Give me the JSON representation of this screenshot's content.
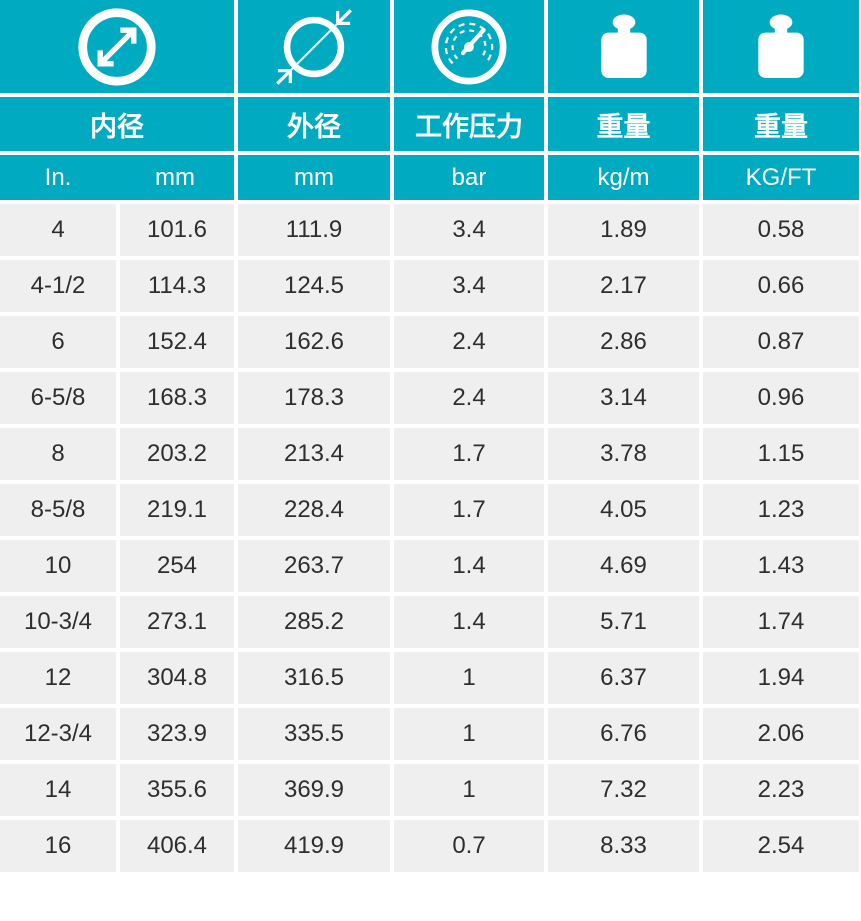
{
  "chart_data": {
    "type": "table",
    "column_groups": [
      {
        "label": "内径",
        "icon": "inner-diameter-icon",
        "units": [
          "In.",
          "mm"
        ]
      },
      {
        "label": "外径",
        "icon": "outer-diameter-icon",
        "units": [
          "mm"
        ]
      },
      {
        "label": "工作压力",
        "icon": "pressure-gauge-icon",
        "units": [
          "bar"
        ]
      },
      {
        "label": "重量",
        "icon": "weight-icon",
        "units": [
          "kg/m"
        ]
      },
      {
        "label": "重量",
        "icon": "weight-icon",
        "units": [
          "KG/FT"
        ]
      }
    ],
    "rows": [
      [
        "4",
        "101.6",
        "111.9",
        "3.4",
        "1.89",
        "0.58"
      ],
      [
        "4-1/2",
        "114.3",
        "124.5",
        "3.4",
        "2.17",
        "0.66"
      ],
      [
        "6",
        "152.4",
        "162.6",
        "2.4",
        "2.86",
        "0.87"
      ],
      [
        "6-5/8",
        "168.3",
        "178.3",
        "2.4",
        "3.14",
        "0.96"
      ],
      [
        "8",
        "203.2",
        "213.4",
        "1.7",
        "3.78",
        "1.15"
      ],
      [
        "8-5/8",
        "219.1",
        "228.4",
        "1.7",
        "4.05",
        "1.23"
      ],
      [
        "10",
        "254",
        "263.7",
        "1.4",
        "4.69",
        "1.43"
      ],
      [
        "10-3/4",
        "273.1",
        "285.2",
        "1.4",
        "5.71",
        "1.74"
      ],
      [
        "12",
        "304.8",
        "316.5",
        "1",
        "6.37",
        "1.94"
      ],
      [
        "12-3/4",
        "323.9",
        "335.5",
        "1",
        "6.76",
        "2.06"
      ],
      [
        "14",
        "355.6",
        "369.9",
        "1",
        "7.32",
        "2.23"
      ],
      [
        "16",
        "406.4",
        "419.9",
        "0.7",
        "8.33",
        "2.54"
      ]
    ]
  },
  "colors": {
    "accent": "#00abc1",
    "row_bg": "#efefef",
    "row_text": "#2e2e2e",
    "gap": "#ffffff"
  }
}
